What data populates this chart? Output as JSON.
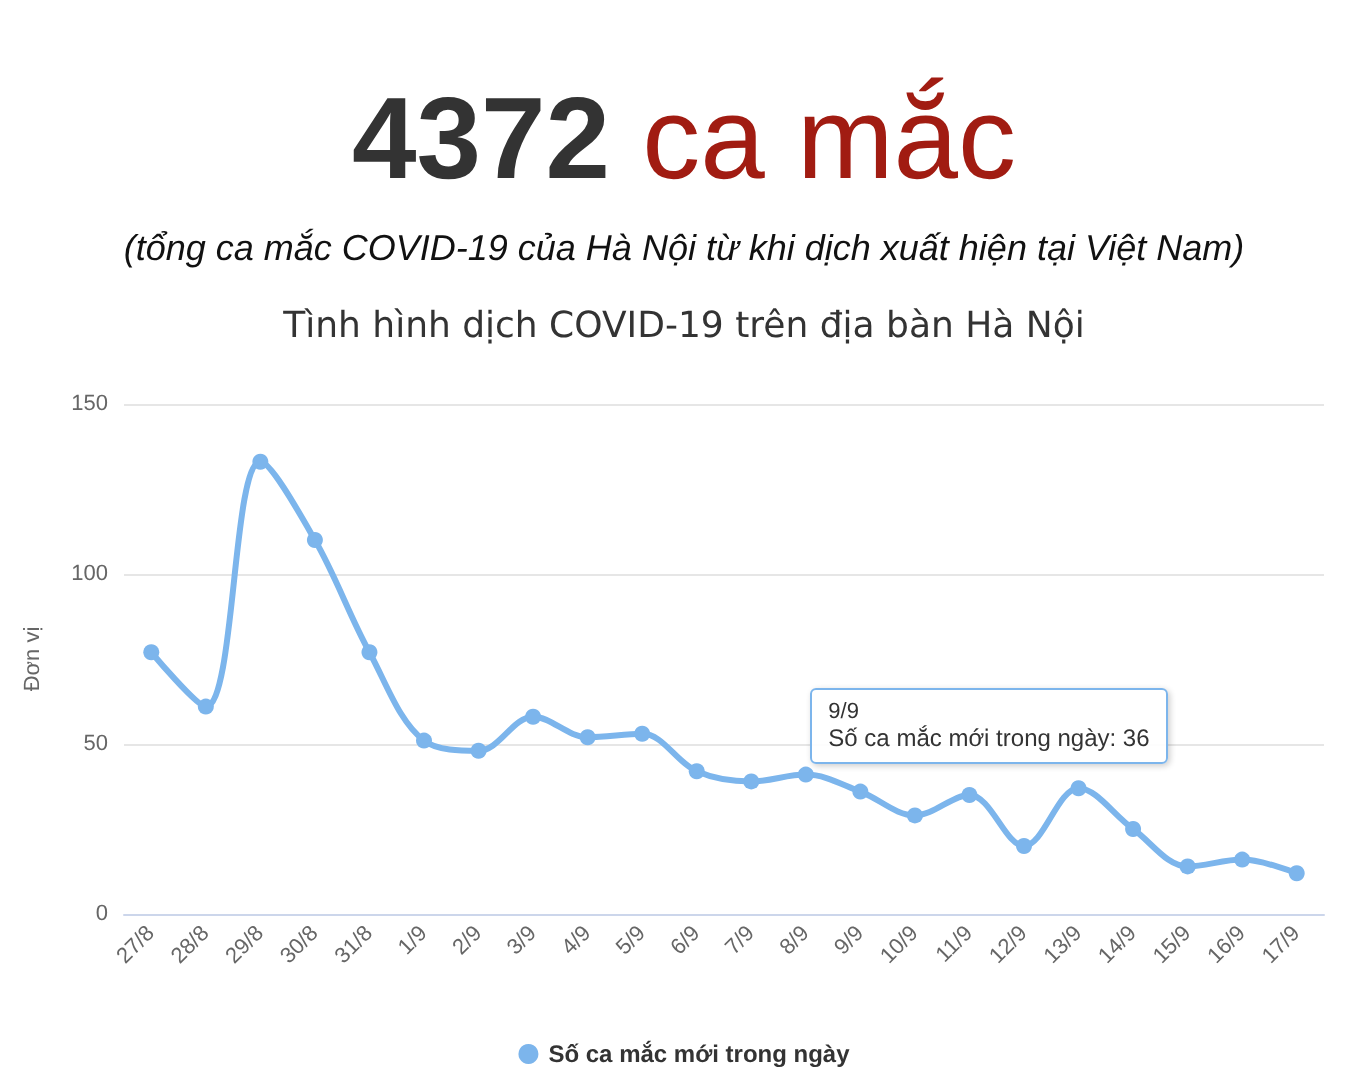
{
  "chart_data": {
    "type": "line",
    "title": "Tình hình dịch COVID-19 trên địa bàn Hà Nội",
    "subtitle": "(tổng ca mắc COVID-19 của Hà Nội từ khi dịch xuất hiện tại Việt Nam)",
    "ylabel": "Đơn vị",
    "annotations": [
      "4372 ca mắc",
      {
        "text": "9/9\nSố ca mắc mới trong ngày: 36",
        "x": "9/9",
        "y": 36
      }
    ],
    "categories": [
      "27/8",
      "28/8",
      "29/8",
      "30/8",
      "31/8",
      "1/9",
      "2/9",
      "3/9",
      "4/9",
      "5/9",
      "6/9",
      "7/9",
      "8/9",
      "9/9",
      "10/9",
      "11/9",
      "12/9",
      "13/9",
      "14/9",
      "15/9",
      "16/9",
      "17/9"
    ],
    "series": [
      {
        "name": "Số ca mắc mới trong ngày",
        "color": "#7cb5ec",
        "values": [
          77,
          61,
          133,
          110,
          77,
          51,
          48,
          58,
          52,
          53,
          42,
          39,
          41,
          36,
          29,
          35,
          20,
          37,
          25,
          14,
          16,
          12
        ]
      }
    ],
    "ylim": [
      0,
      150
    ],
    "yticks": [
      0,
      50,
      100,
      150
    ],
    "grid": "y",
    "legend": "bottom",
    "marker": "circle"
  }
}
